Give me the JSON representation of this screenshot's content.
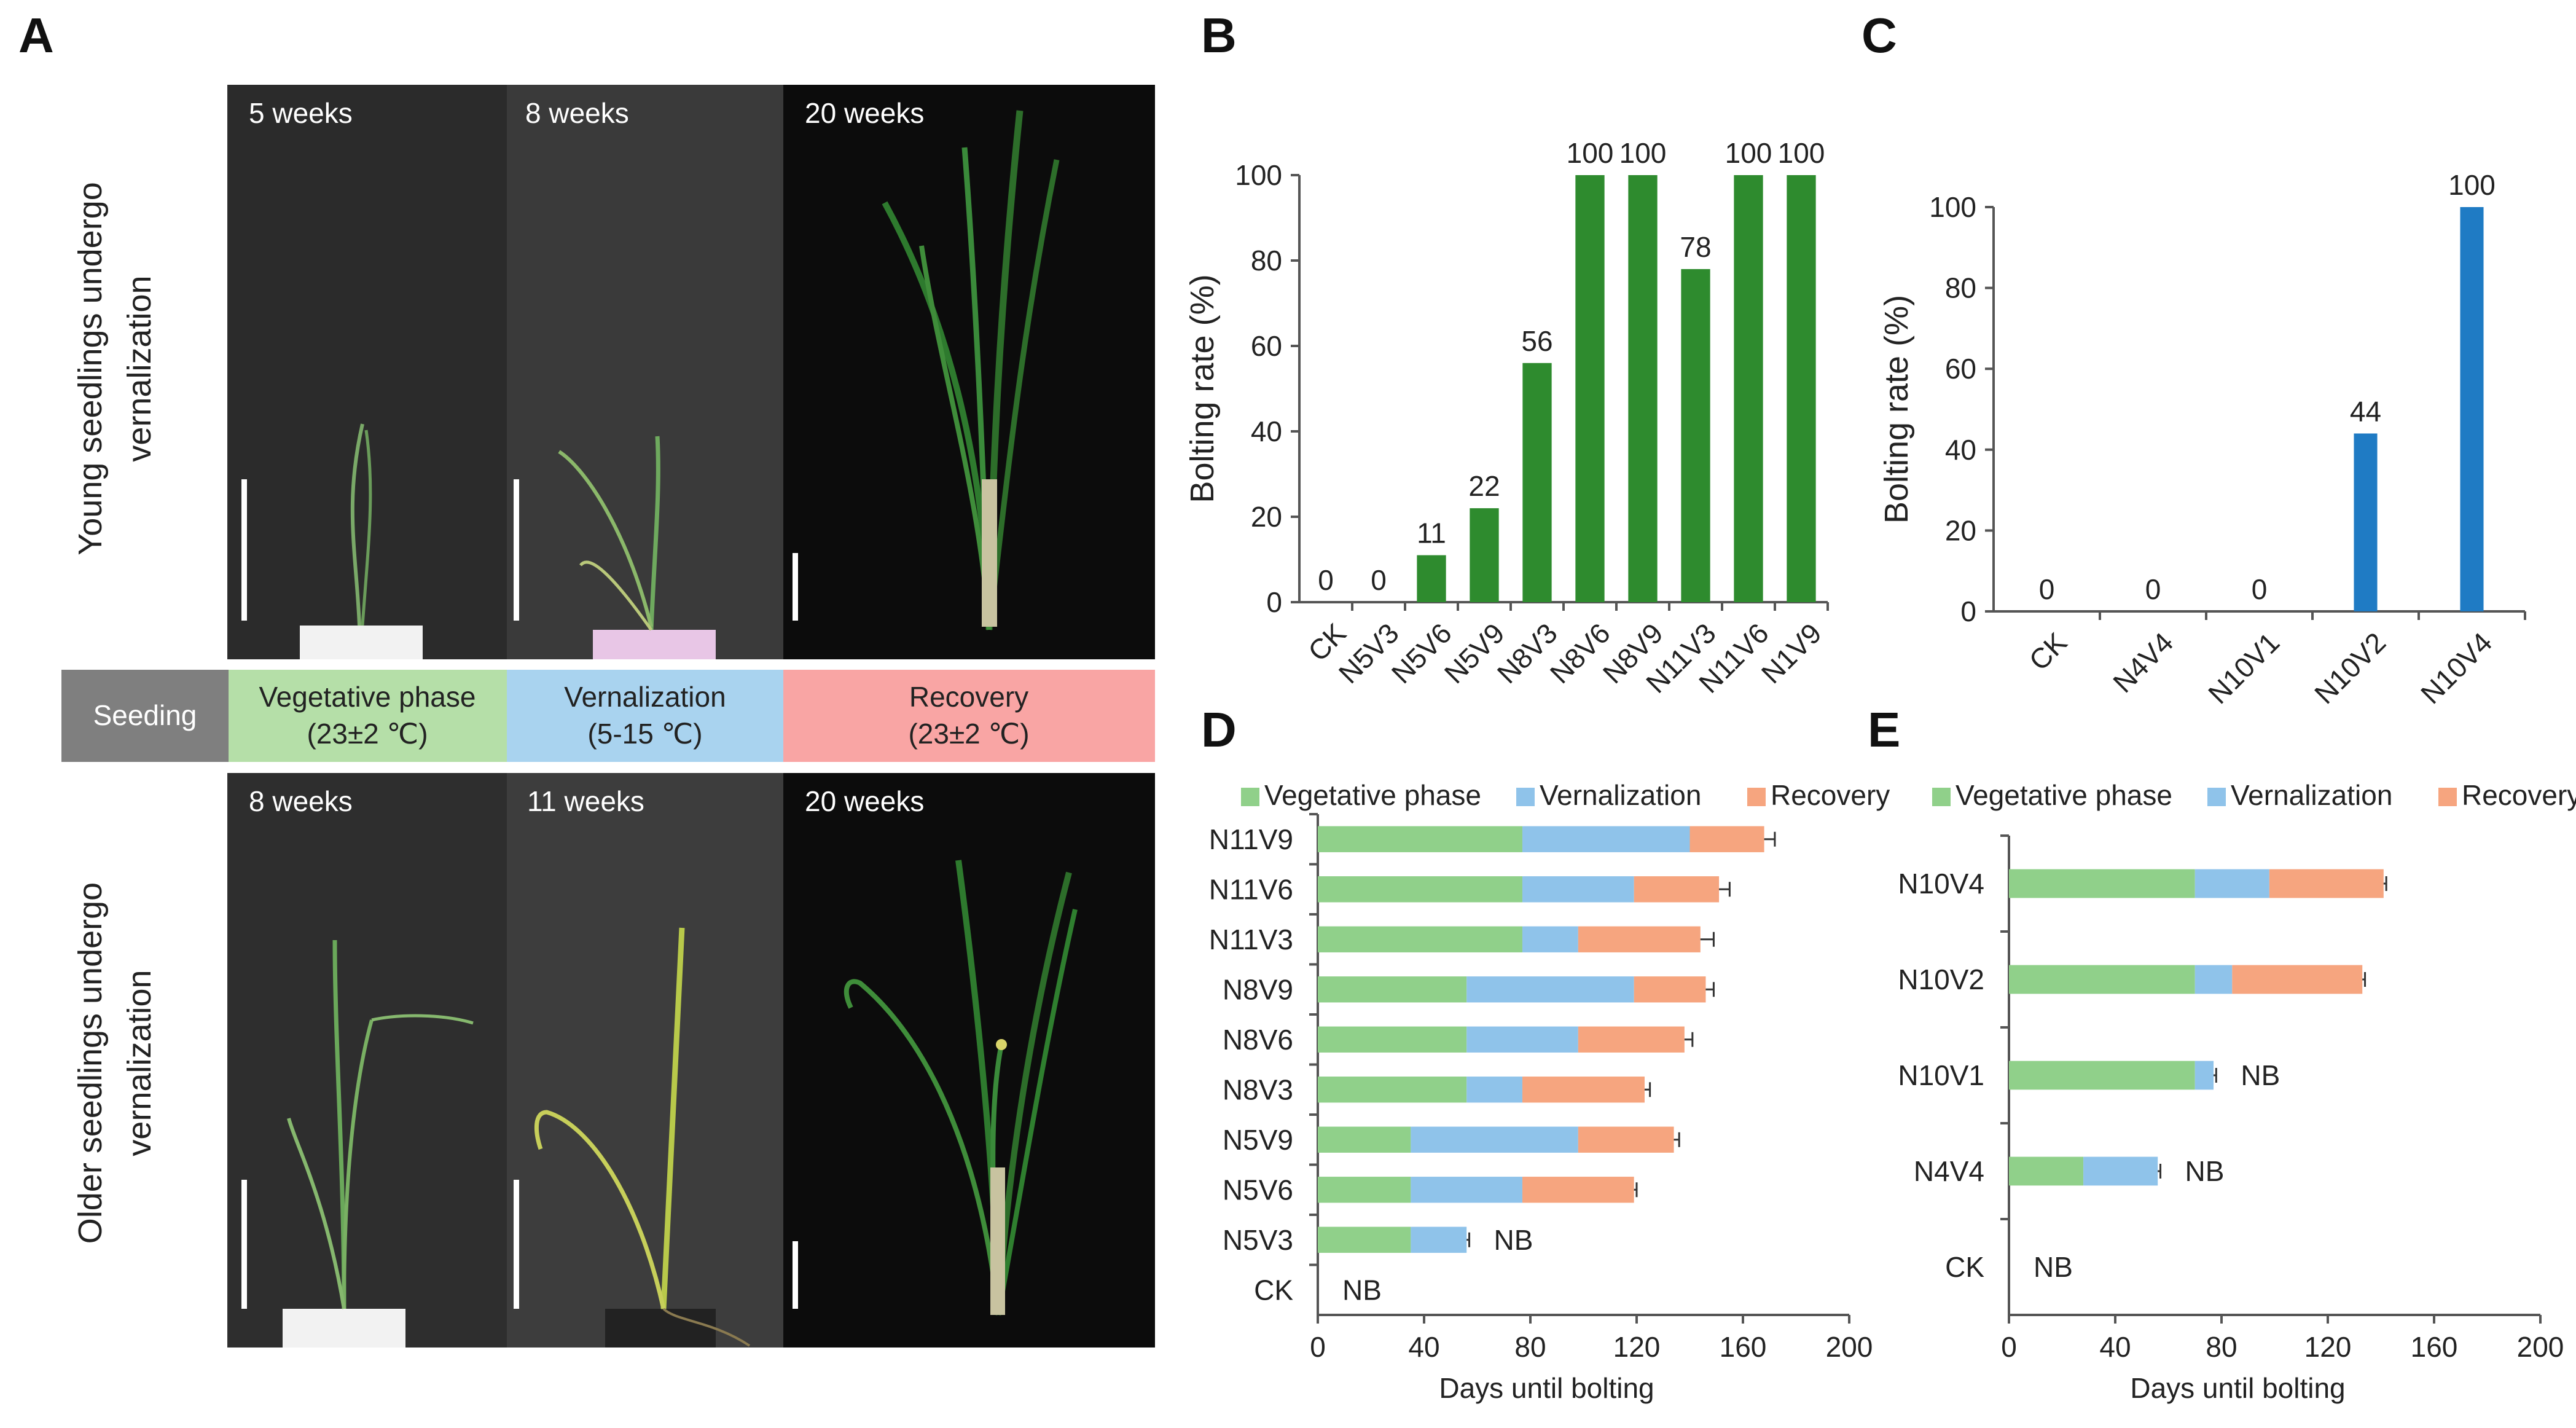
{
  "panels": {
    "a": "A",
    "b": "B",
    "c": "C",
    "d": "D",
    "e": "E"
  },
  "panel_a": {
    "row_top_label": [
      "Young seedlings undergo",
      "vernalization"
    ],
    "row_bottom_label": [
      "Older seedlings undergo",
      "vernalization"
    ],
    "top_photos": [
      "5 weeks",
      "8 weeks",
      "20 weeks"
    ],
    "bottom_photos": [
      "8 weeks",
      "11 weeks",
      "20 weeks"
    ],
    "timeline": {
      "seeding": "Seeding",
      "vegetative": "Vegetative phase",
      "vegetative_temp": "(23±2 ℃)",
      "vernalization": "Vernalization",
      "vernalization_temp": "(5-15 ℃)",
      "recovery": "Recovery",
      "recovery_temp": "(23±2 ℃)"
    },
    "colors": {
      "seeding": "#7f7f7f",
      "vegetative": "#b5dfa8",
      "vernalization": "#a9d3ef",
      "recovery": "#f9a5a4"
    }
  },
  "chart_data": [
    {
      "id": "B",
      "type": "bar",
      "categories": [
        "CK",
        "N5V3",
        "N5V6",
        "N5V9",
        "N8V3",
        "N8V6",
        "N8V9",
        "N11V3",
        "N11V6",
        "N1V9"
      ],
      "values": [
        0,
        0,
        11,
        22,
        56,
        100,
        100,
        78,
        100,
        100
      ],
      "ylabel": "Bolting rate (%)",
      "ylim": [
        0,
        100
      ],
      "yticks": [
        0,
        20,
        40,
        60,
        80,
        100
      ],
      "bar_color": "#2e8b2e"
    },
    {
      "id": "C",
      "type": "bar",
      "categories": [
        "CK",
        "N4V4",
        "N10V1",
        "N10V2",
        "N10V4"
      ],
      "values": [
        0,
        0,
        0,
        44,
        100
      ],
      "ylabel": "Bolting rate (%)",
      "ylim": [
        0,
        100
      ],
      "yticks": [
        0,
        20,
        40,
        60,
        80,
        100
      ],
      "bar_color": "#1f7bc4"
    },
    {
      "id": "D",
      "type": "bar",
      "orientation": "horizontal-stacked",
      "categories": [
        "N11V9",
        "N11V6",
        "N11V3",
        "N8V9",
        "N8V6",
        "N8V3",
        "N5V9",
        "N5V6",
        "N5V3",
        "CK"
      ],
      "series": [
        {
          "name": "Vegetative phase",
          "values": [
            77,
            77,
            77,
            56,
            56,
            56,
            35,
            35,
            35,
            0
          ]
        },
        {
          "name": "Vernalization",
          "values": [
            63,
            42,
            21,
            63,
            42,
            21,
            63,
            42,
            21,
            0
          ]
        },
        {
          "name": "Recovery",
          "values": [
            28,
            32,
            46,
            27,
            40,
            46,
            36,
            42,
            0,
            0
          ]
        }
      ],
      "errors": [
        4,
        4,
        5,
        3,
        3,
        2,
        2,
        1,
        1,
        0
      ],
      "nb": [
        "",
        "",
        "",
        "",
        "",
        "",
        "",
        "",
        "NB",
        "NB"
      ],
      "xlabel": "Days until bolting",
      "xlim": [
        0,
        200
      ],
      "xticks": [
        0,
        40,
        80,
        120,
        160,
        200
      ],
      "colors": [
        "#90d08a",
        "#8fc3ea",
        "#f6a57f"
      ]
    },
    {
      "id": "E",
      "type": "bar",
      "orientation": "horizontal-stacked",
      "categories": [
        "N10V4",
        "N10V2",
        "N10V1",
        "N4V4",
        "CK"
      ],
      "series": [
        {
          "name": "Vegetative phase",
          "values": [
            70,
            70,
            70,
            28,
            0
          ]
        },
        {
          "name": "Vernalization",
          "values": [
            28,
            14,
            7,
            28,
            0
          ]
        },
        {
          "name": "Recovery",
          "values": [
            43,
            49,
            0,
            0,
            0
          ]
        }
      ],
      "errors": [
        1,
        1,
        1,
        1,
        0
      ],
      "nb": [
        "",
        "",
        "NB",
        "NB",
        "NB"
      ],
      "xlabel": "Days until bolting",
      "xlim": [
        0,
        200
      ],
      "xticks": [
        0,
        40,
        80,
        120,
        160,
        200
      ],
      "colors": [
        "#90d08a",
        "#8fc3ea",
        "#f6a57f"
      ]
    }
  ]
}
